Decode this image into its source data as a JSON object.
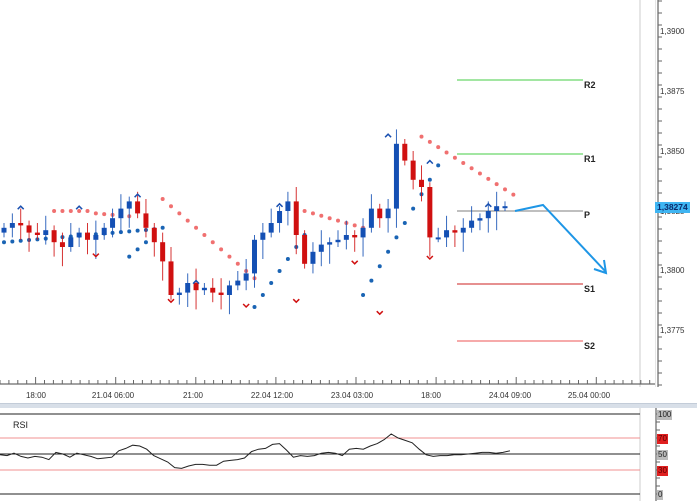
{
  "chart_data": [
    {
      "type": "candlestick",
      "title": "",
      "instrument_current_price": "1,38274",
      "price_axis": {
        "ticks": [
          "1,3900",
          "1,3875",
          "1,3850",
          "1,3825",
          "1,3800",
          "1,3775"
        ],
        "tick_values": [
          1.39,
          1.3875,
          1.385,
          1.3825,
          1.38,
          1.3775
        ],
        "ylim": [
          1.3762,
          1.393
        ]
      },
      "time_axis": {
        "ticks": [
          "18:00",
          "21.04 06:00",
          "21:00",
          "22.04 12:00",
          "23.04 03:00",
          "18:00",
          "24.04 09:00",
          "25.04 00:00"
        ]
      },
      "pivot_levels": [
        {
          "name": "R2",
          "value": 1.388,
          "color": "#33cc33"
        },
        {
          "name": "R1",
          "value": 1.3848,
          "color": "#33cc33"
        },
        {
          "name": "P",
          "value": 1.3825,
          "color": "#aaaaaa"
        },
        {
          "name": "S1",
          "value": 1.3793,
          "color": "#cc2222"
        },
        {
          "name": "S2",
          "value": 1.377,
          "color": "#ee4444"
        }
      ],
      "indicators": [
        "Parabolic SAR (dots)",
        "Fractals (arrows)"
      ],
      "colors": {
        "bull": "#1450b4",
        "bear": "#d01010",
        "sar_bear": "#f07070",
        "sar_bull": "#1a64b4",
        "forecast_arrow": "#1e96e6"
      },
      "forecast_arrow": {
        "points": [
          [
            1.3826,
            "24.04 09:00"
          ],
          [
            1.3828,
            "+4h"
          ],
          [
            1.3798,
            "+18h"
          ]
        ]
      },
      "close_series_approx": [
        1.3818,
        1.382,
        1.3819,
        1.3816,
        1.3815,
        1.3817,
        1.3812,
        1.381,
        1.3814,
        1.3816,
        1.3813,
        1.3815,
        1.3818,
        1.3822,
        1.3826,
        1.3829,
        1.3824,
        1.3818,
        1.3812,
        1.3804,
        1.379,
        1.3791,
        1.3795,
        1.3792,
        1.3793,
        1.3791,
        1.379,
        1.3794,
        1.3796,
        1.3799,
        1.3813,
        1.3816,
        1.382,
        1.3825,
        1.3829,
        1.3815,
        1.3803,
        1.3808,
        1.3811,
        1.3812,
        1.3813,
        1.3815,
        1.3814,
        1.3818,
        1.3826,
        1.3822,
        1.3826,
        1.3853,
        1.3846,
        1.3838,
        1.3835,
        1.3814,
        1.3814,
        1.3817,
        1.3816,
        1.3818,
        1.3821,
        1.3822,
        1.3825,
        1.3827,
        1.3827
      ]
    },
    {
      "type": "line",
      "title": "RSI",
      "ylim": [
        0,
        100
      ],
      "levels": [
        {
          "value": 70,
          "color": "#ee8888"
        },
        {
          "value": 50,
          "color": "#222222"
        },
        {
          "value": 30,
          "color": "#ee8888"
        }
      ],
      "tick_labels": [
        "100",
        "70",
        "50",
        "30",
        "0"
      ],
      "values_approx": [
        49,
        48,
        51,
        47,
        45,
        47,
        46,
        43,
        52,
        50,
        46,
        51,
        49,
        47,
        44,
        45,
        46,
        54,
        57,
        61,
        60,
        56,
        48,
        44,
        40,
        33,
        32,
        35,
        37,
        37,
        36,
        36,
        41,
        42,
        43,
        45,
        53,
        56,
        57,
        62,
        63,
        55,
        46,
        48,
        47,
        48,
        51,
        52,
        51,
        48,
        56,
        57,
        56,
        60,
        63,
        68,
        75,
        70,
        67,
        64,
        56,
        49,
        47,
        48,
        48,
        49,
        49,
        50,
        51,
        52,
        52,
        51,
        52,
        54
      ]
    }
  ],
  "price_axis": {
    "labels": [
      "1,3900",
      "1,3875",
      "1,3850",
      "1,3825",
      "1,3800",
      "1,3775"
    ],
    "current": "1,38274"
  },
  "time_axis": {
    "labels": [
      "18:00",
      "21.04 06:00",
      "21:00",
      "22.04 12:00",
      "23.04 03:00",
      "18:00",
      "24.04 09:00",
      "25.04 00:00"
    ]
  },
  "pivots": {
    "r2": "R2",
    "r1": "R1",
    "p": "P",
    "s1": "S1",
    "s2": "S2"
  },
  "rsi": {
    "title": "RSI",
    "levels": {
      "l100": "100",
      "l70": "70",
      "l50": "50",
      "l30": "30",
      "l0": "0"
    }
  }
}
